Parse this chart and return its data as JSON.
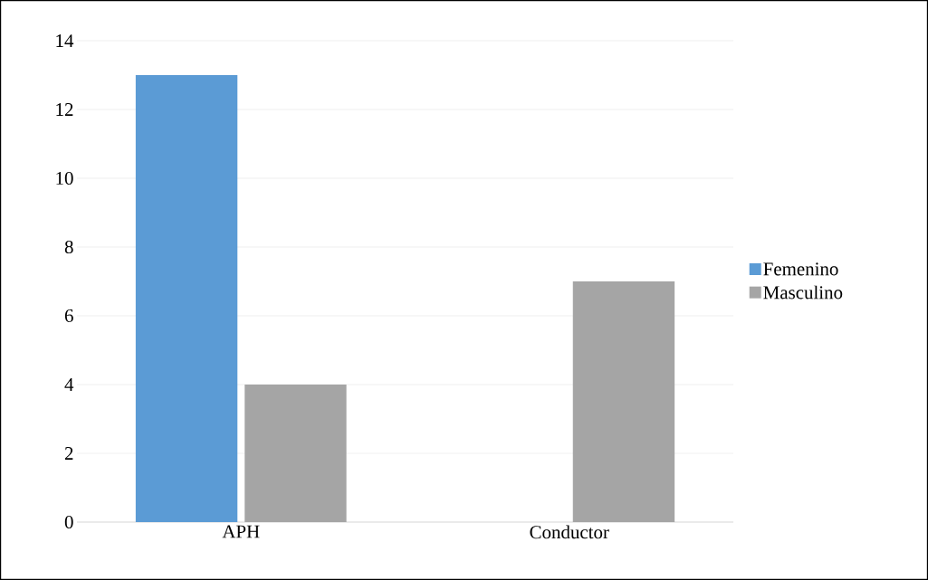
{
  "chart_data": {
    "type": "bar",
    "categories": [
      "APH",
      "Conductor"
    ],
    "series": [
      {
        "name": "Femenino",
        "color": "#5b9bd5",
        "values": [
          13,
          0
        ]
      },
      {
        "name": "Masculino",
        "color": "#a5a5a5",
        "values": [
          4,
          7
        ]
      }
    ],
    "ylim": [
      0,
      14
    ],
    "yticks": [
      0,
      2,
      4,
      6,
      8,
      10,
      12,
      14
    ],
    "grid": "y",
    "legend": "right"
  }
}
